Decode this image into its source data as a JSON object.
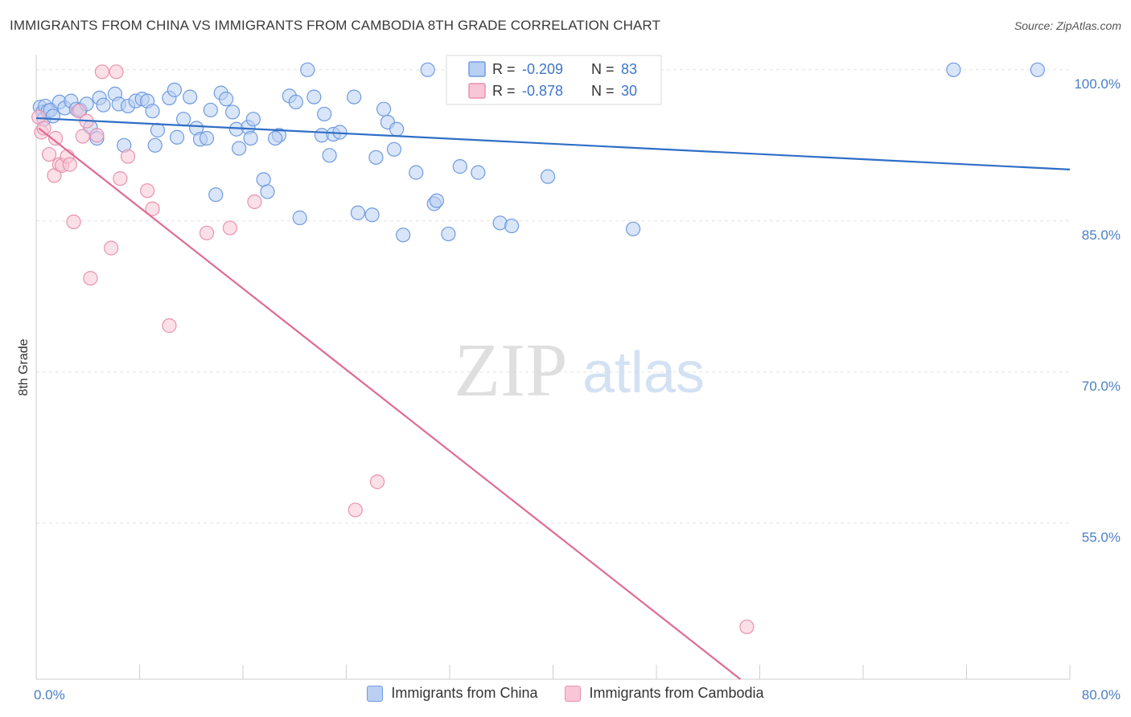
{
  "title": "IMMIGRANTS FROM CHINA VS IMMIGRANTS FROM CAMBODIA 8TH GRADE CORRELATION CHART",
  "source": "Source: ZipAtlas.com",
  "watermark": {
    "zip": "ZIP",
    "atlas": "atlas"
  },
  "colors": {
    "china_fill": "#b9d0f2",
    "china_stroke": "#6f9be0",
    "china_line": "#2f6ec6",
    "cambodia_fill": "#f8c6d6",
    "cambodia_stroke": "#e892ae",
    "cambodia_line": "#e06a95",
    "grid": "#e3e3e3",
    "tick_label": "#4a7fc6"
  },
  "legend_box": {
    "rows": [
      {
        "series": "china",
        "r_label": "R =",
        "r_value": "-0.209",
        "n_label": "N =",
        "n_value": "83"
      },
      {
        "series": "cambodia",
        "r_label": "R =",
        "r_value": "-0.878",
        "n_label": "N =",
        "n_value": "30"
      }
    ]
  },
  "bottom_legend": [
    {
      "series": "china",
      "label": "Immigrants from China"
    },
    {
      "series": "cambodia",
      "label": "Immigrants from Cambodia"
    }
  ],
  "chart_data": {
    "type": "scatter",
    "title": "IMMIGRANTS FROM CHINA VS IMMIGRANTS FROM CAMBODIA 8TH GRADE CORRELATION CHART",
    "xlabel": "",
    "ylabel": "8th Grade",
    "xlim": [
      0,
      80
    ],
    "ylim": [
      39.5,
      101.5
    ],
    "x_tick_labels": [
      {
        "value": 0,
        "label": "0.0%"
      },
      {
        "value": 80,
        "label": "80.0%"
      }
    ],
    "x_minor_ticks": [
      8,
      16,
      24,
      32,
      40,
      48,
      56,
      64,
      72,
      80
    ],
    "y_ticks": [
      {
        "value": 100,
        "label": "100.0%"
      },
      {
        "value": 85,
        "label": "85.0%"
      },
      {
        "value": 70,
        "label": "70.0%"
      },
      {
        "value": 55,
        "label": "55.0%"
      }
    ],
    "grid": true,
    "legend_position": "top-center",
    "series": [
      {
        "name": "Immigrants from China",
        "key": "china",
        "trend": {
          "x": [
            0,
            80
          ],
          "y": [
            95.2,
            90.1
          ]
        },
        "points": [
          [
            0.3,
            96.3
          ],
          [
            0.5,
            95.8
          ],
          [
            0.6,
            95.1
          ],
          [
            0.7,
            96.4
          ],
          [
            0.9,
            95.9
          ],
          [
            1.1,
            96.0
          ],
          [
            1.3,
            95.4
          ],
          [
            1.8,
            96.8
          ],
          [
            2.2,
            96.2
          ],
          [
            2.7,
            96.9
          ],
          [
            3.1,
            96.1
          ],
          [
            3.4,
            96.0
          ],
          [
            3.9,
            96.6
          ],
          [
            4.2,
            94.3
          ],
          [
            4.7,
            93.2
          ],
          [
            4.9,
            97.2
          ],
          [
            5.2,
            96.5
          ],
          [
            6.1,
            97.6
          ],
          [
            6.4,
            96.6
          ],
          [
            6.8,
            92.5
          ],
          [
            7.1,
            96.4
          ],
          [
            7.7,
            96.9
          ],
          [
            8.2,
            97.1
          ],
          [
            8.6,
            96.9
          ],
          [
            9.0,
            95.9
          ],
          [
            9.4,
            94.0
          ],
          [
            9.2,
            92.5
          ],
          [
            10.3,
            97.2
          ],
          [
            10.7,
            98.0
          ],
          [
            10.9,
            93.3
          ],
          [
            11.4,
            95.1
          ],
          [
            11.9,
            97.3
          ],
          [
            12.4,
            94.2
          ],
          [
            12.7,
            93.1
          ],
          [
            13.2,
            93.2
          ],
          [
            13.5,
            96.0
          ],
          [
            13.9,
            87.6
          ],
          [
            14.3,
            97.7
          ],
          [
            14.7,
            97.1
          ],
          [
            15.2,
            95.8
          ],
          [
            15.5,
            94.1
          ],
          [
            15.7,
            92.2
          ],
          [
            16.4,
            94.3
          ],
          [
            16.8,
            95.1
          ],
          [
            16.6,
            93.2
          ],
          [
            17.6,
            89.1
          ],
          [
            17.9,
            87.9
          ],
          [
            18.8,
            93.5
          ],
          [
            18.5,
            93.2
          ],
          [
            19.6,
            97.4
          ],
          [
            20.1,
            96.8
          ],
          [
            20.4,
            85.3
          ],
          [
            21.0,
            100.0
          ],
          [
            21.5,
            97.3
          ],
          [
            22.1,
            93.5
          ],
          [
            22.3,
            95.6
          ],
          [
            22.7,
            91.5
          ],
          [
            23.0,
            93.6
          ],
          [
            23.5,
            93.8
          ],
          [
            24.6,
            97.3
          ],
          [
            24.9,
            85.8
          ],
          [
            26.0,
            85.6
          ],
          [
            26.3,
            91.3
          ],
          [
            26.9,
            96.1
          ],
          [
            27.2,
            94.8
          ],
          [
            27.9,
            94.1
          ],
          [
            27.7,
            92.1
          ],
          [
            28.4,
            83.6
          ],
          [
            29.4,
            89.8
          ],
          [
            30.3,
            100.0
          ],
          [
            30.8,
            86.7
          ],
          [
            31.0,
            87.0
          ],
          [
            31.9,
            83.7
          ],
          [
            32.8,
            90.4
          ],
          [
            33.8,
            100.0
          ],
          [
            34.2,
            89.8
          ],
          [
            35.9,
            84.8
          ],
          [
            36.8,
            84.5
          ],
          [
            39.6,
            89.4
          ],
          [
            42.6,
            100.0
          ],
          [
            46.2,
            84.2
          ],
          [
            71.0,
            100.0
          ],
          [
            77.5,
            100.0
          ]
        ]
      },
      {
        "name": "Immigrants from Cambodia",
        "key": "cambodia",
        "trend": {
          "x": [
            0.2,
            54.5
          ],
          "y": [
            94.2,
            39.5
          ]
        },
        "points": [
          [
            0.2,
            95.3
          ],
          [
            0.4,
            93.8
          ],
          [
            0.6,
            94.2
          ],
          [
            1.0,
            91.6
          ],
          [
            1.4,
            89.5
          ],
          [
            1.5,
            93.2
          ],
          [
            1.8,
            90.6
          ],
          [
            2.0,
            90.5
          ],
          [
            2.4,
            91.4
          ],
          [
            2.6,
            90.6
          ],
          [
            2.9,
            84.9
          ],
          [
            3.3,
            95.9
          ],
          [
            3.6,
            93.4
          ],
          [
            3.9,
            94.9
          ],
          [
            4.2,
            79.3
          ],
          [
            4.7,
            93.5
          ],
          [
            5.1,
            99.8
          ],
          [
            5.8,
            82.3
          ],
          [
            6.2,
            99.8
          ],
          [
            6.5,
            89.2
          ],
          [
            7.1,
            91.4
          ],
          [
            8.6,
            88.0
          ],
          [
            9.0,
            86.2
          ],
          [
            10.3,
            74.6
          ],
          [
            13.2,
            83.8
          ],
          [
            15.0,
            84.3
          ],
          [
            16.9,
            86.9
          ],
          [
            24.7,
            56.3
          ],
          [
            26.4,
            59.1
          ],
          [
            55.0,
            44.7
          ]
        ]
      }
    ]
  }
}
